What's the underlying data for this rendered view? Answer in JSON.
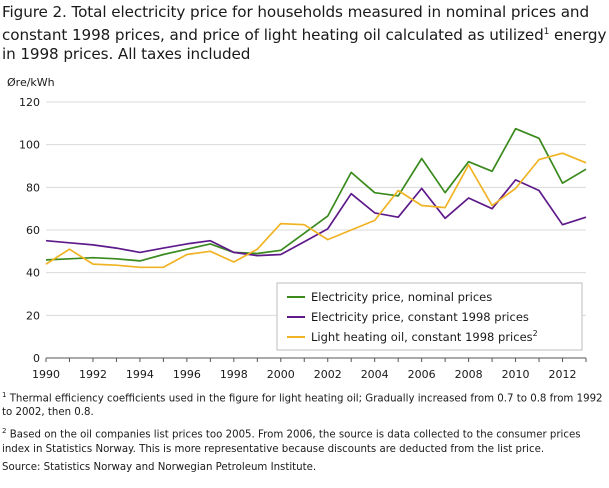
{
  "title": "Figure 2. Total electricity price for households measured in nominal prices and constant 1998 prices, and price of light heating oil calculated as utilized",
  "title_sup": "1",
  "title_tail": " energy  in 1998 prices. All taxes included",
  "footnotes": [
    {
      "marker": "1",
      "text": " Thermal efficiency coefficients used in the figure for light heating oil; Gradually increased from 0.7 to 0.8 from 1992 to 2002, then 0.8."
    },
    {
      "marker": "2",
      "text": " Based on the oil companies list prices too 2005. From 2006, the source is data collected to the consumer prices index in Statistics Norway. This is more representative because discounts are deducted from the list price."
    }
  ],
  "source": "Source: Statistics Norway and Norwegian Petroleum Institute.",
  "colors": {
    "grid": "#d9d9d9",
    "axis": "#555555"
  },
  "chart_data": {
    "type": "line",
    "ylabel": "Øre/kWh",
    "xlabel": "",
    "ylim": [
      0,
      120
    ],
    "xlim": [
      1990,
      2013
    ],
    "yticks": [
      0,
      20,
      40,
      60,
      80,
      100,
      120
    ],
    "xticks": [
      1990,
      1992,
      1994,
      1996,
      1998,
      2000,
      2002,
      2004,
      2006,
      2008,
      2010,
      2012
    ],
    "grid": true,
    "legend_position": "bottom-right",
    "x": [
      1990,
      1991,
      1992,
      1993,
      1994,
      1995,
      1996,
      1997,
      1998,
      1999,
      2000,
      2001,
      2002,
      2003,
      2004,
      2005,
      2006,
      2007,
      2008,
      2009,
      2010,
      2011,
      2012,
      2013
    ],
    "series": [
      {
        "name": "Electricity price, nominal prices",
        "sup": "",
        "color": "#3a8a1e",
        "values": [
          46.0,
          46.5,
          47.0,
          46.5,
          45.5,
          48.5,
          51.0,
          53.5,
          49.5,
          49.0,
          50.5,
          58.5,
          66.5,
          87.0,
          77.5,
          76.0,
          93.5,
          77.5,
          92.0,
          87.5,
          107.5,
          103.0,
          82.0,
          88.5
        ]
      },
      {
        "name": "Electricity price, constant 1998 prices",
        "sup": "",
        "color": "#5e1a8a",
        "values": [
          55.0,
          54.0,
          53.0,
          51.5,
          49.5,
          51.5,
          53.5,
          55.0,
          49.5,
          48.0,
          48.5,
          54.5,
          60.5,
          77.0,
          68.0,
          66.0,
          79.5,
          65.5,
          75.0,
          70.0,
          83.5,
          78.5,
          62.5,
          66.0
        ]
      },
      {
        "name": "Light heating oil, constant 1998 prices",
        "sup": "2",
        "color": "#f0b323",
        "values": [
          44.0,
          51.0,
          44.0,
          43.5,
          42.5,
          42.5,
          48.5,
          50.0,
          45.0,
          51.0,
          63.0,
          62.5,
          55.5,
          60.0,
          64.5,
          78.5,
          71.5,
          70.5,
          90.5,
          71.5,
          79.5,
          93.0,
          96.0,
          91.5
        ]
      }
    ]
  }
}
